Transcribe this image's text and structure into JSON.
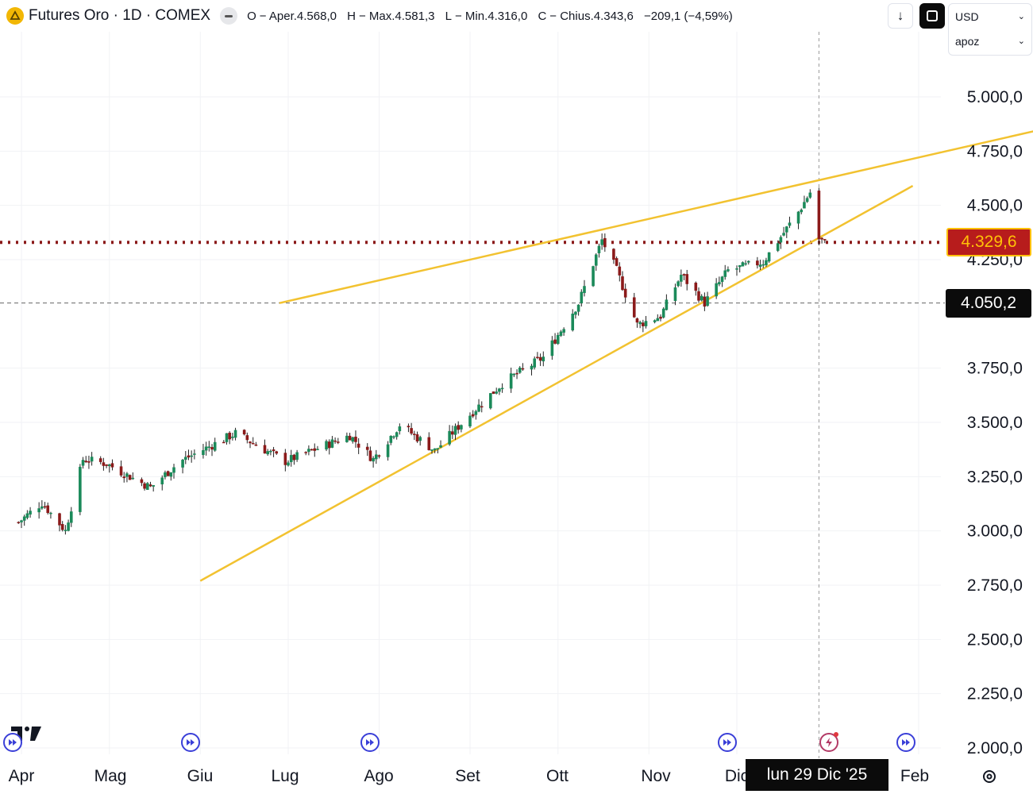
{
  "header": {
    "title": "Futures Oro · 1D · COMEX",
    "ohlc": [
      {
        "label": "O",
        "value": "− Aper.4.568,0"
      },
      {
        "label": "H",
        "value": "− Max.4.581,3"
      },
      {
        "label": "L",
        "value": "− Min.4.316,0"
      },
      {
        "label": "C",
        "value": "− Chius.4.343,6"
      }
    ],
    "change": "−209,1 (−4,59%)",
    "currency": "USD",
    "unit": "apoz"
  },
  "tags": {
    "last_price": "4.329,6",
    "crosshair_price": "4.050,2",
    "crosshair_date": "lun 29 Dic '25"
  },
  "icons": {
    "logo": "gold-coin-icon",
    "download": "download-arrow-icon",
    "fullscreen": "fullscreen-icon",
    "settings": "gear-icon",
    "events": [
      "fast-forward-event-icon",
      "flash-event-icon"
    ]
  },
  "colors": {
    "up": "#1b8a5a",
    "down": "#8b1a1a",
    "trendline": "#f2c230",
    "last_price_line": "#8b1a1a",
    "tag_bg": "#b71c1c",
    "tag_text": "#ffc107"
  },
  "chart_data": {
    "type": "candlestick",
    "title": "Futures Oro · 1D · COMEX",
    "y_ticks": [
      {
        "value": 5000,
        "label": "5.000,0"
      },
      {
        "value": 4750,
        "label": "4.750,0"
      },
      {
        "value": 4500,
        "label": "4.500,0"
      },
      {
        "value": 4250,
        "label": "4.250,0"
      },
      {
        "value": 3750,
        "label": "3.750,0"
      },
      {
        "value": 3500,
        "label": "3.500,0"
      },
      {
        "value": 3250,
        "label": "3.250,0"
      },
      {
        "value": 3000,
        "label": "3.000,0"
      },
      {
        "value": 2750,
        "label": "2.750,0"
      },
      {
        "value": 2500,
        "label": "2.500,0"
      },
      {
        "value": 2250,
        "label": "2.250,0"
      },
      {
        "value": 2000,
        "label": "2.000,0"
      }
    ],
    "x_ticks": [
      {
        "date": "2025-04-01",
        "label": "Apr"
      },
      {
        "date": "2025-05-01",
        "label": "Mag"
      },
      {
        "date": "2025-06-01",
        "label": "Giu"
      },
      {
        "date": "2025-07-01",
        "label": "Lug"
      },
      {
        "date": "2025-08-01",
        "label": "Ago"
      },
      {
        "date": "2025-09-01",
        "label": "Set"
      },
      {
        "date": "2025-10-01",
        "label": "Ott"
      },
      {
        "date": "2025-11-01",
        "label": "Nov"
      },
      {
        "date": "2025-12-01",
        "label": "Dic"
      },
      {
        "date": "2026-02-01",
        "label": "Feb"
      }
    ],
    "price_lines": [
      {
        "value": 4329.6,
        "style": "dotted",
        "color": "#8b1a1a"
      },
      {
        "value": 4050.2,
        "style": "dashed",
        "color": "#666666"
      }
    ],
    "crosshair_date": "2025-12-29",
    "trendlines": [
      {
        "from": {
          "date": "2025-06-28",
          "price": 4050
        },
        "to": {
          "date": "2026-03-15",
          "price": 4850
        }
      },
      {
        "from": {
          "date": "2025-06-01",
          "price": 2770
        },
        "to": {
          "date": "2026-01-30",
          "price": 4590
        }
      }
    ],
    "anchors": [
      {
        "date": "2025-03-31",
        "close": 3040
      },
      {
        "date": "2025-04-08",
        "close": 3130
      },
      {
        "date": "2025-04-16",
        "close": 3000
      },
      {
        "date": "2025-04-22",
        "close": 3330
      },
      {
        "date": "2025-04-30",
        "close": 3310
      },
      {
        "date": "2025-05-08",
        "close": 3250
      },
      {
        "date": "2025-05-15",
        "close": 3200
      },
      {
        "date": "2025-05-25",
        "close": 3320
      },
      {
        "date": "2025-06-13",
        "close": 3450
      },
      {
        "date": "2025-06-30",
        "close": 3320
      },
      {
        "date": "2025-07-22",
        "close": 3440
      },
      {
        "date": "2025-07-30",
        "close": 3330
      },
      {
        "date": "2025-08-08",
        "close": 3490
      },
      {
        "date": "2025-08-20",
        "close": 3370
      },
      {
        "date": "2025-09-02",
        "close": 3550
      },
      {
        "date": "2025-09-12",
        "close": 3680
      },
      {
        "date": "2025-09-26",
        "close": 3800
      },
      {
        "date": "2025-10-08",
        "close": 4050
      },
      {
        "date": "2025-10-16",
        "close": 4340
      },
      {
        "date": "2025-10-21",
        "close": 4200
      },
      {
        "date": "2025-10-28",
        "close": 3950
      },
      {
        "date": "2025-11-05",
        "close": 3990
      },
      {
        "date": "2025-11-12",
        "close": 4180
      },
      {
        "date": "2025-11-20",
        "close": 4050
      },
      {
        "date": "2025-11-28",
        "close": 4200
      },
      {
        "date": "2025-12-10",
        "close": 4240
      },
      {
        "date": "2025-12-22",
        "close": 4470
      },
      {
        "date": "2025-12-26",
        "close": 4560
      },
      {
        "date": "2025-12-29",
        "close": 4343.6
      },
      {
        "date": "2025-12-31",
        "close": 4329.6
      }
    ],
    "last_candle": {
      "date": "2025-12-29",
      "open": 4568.0,
      "high": 4581.3,
      "low": 4316.0,
      "close": 4343.6
    }
  }
}
